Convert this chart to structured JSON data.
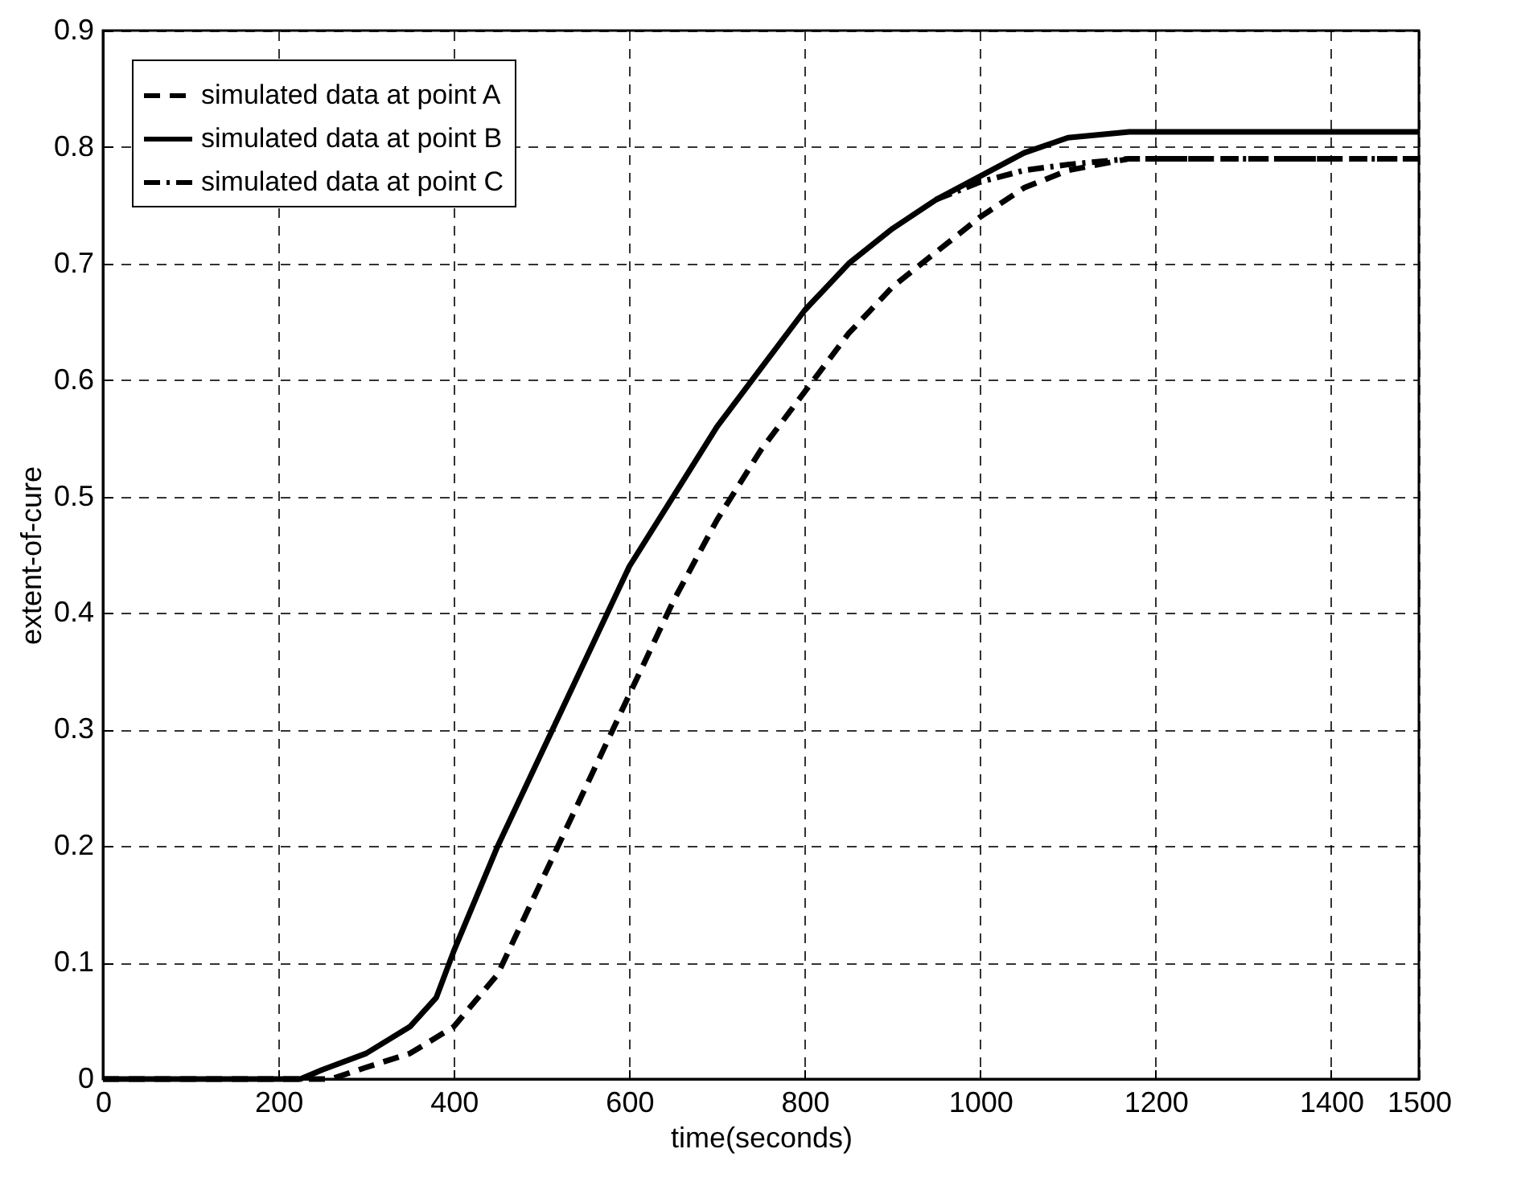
{
  "chart_data": {
    "type": "line",
    "xlabel": "time(seconds)",
    "ylabel": "extent-of-cure",
    "x": [
      0,
      225,
      250,
      300,
      350,
      380,
      400,
      450,
      500,
      550,
      600,
      650,
      700,
      750,
      800,
      850,
      900,
      950,
      1000,
      1050,
      1100,
      1170,
      1500
    ],
    "series": [
      {
        "name": "simulated data at point A",
        "color": "#000000",
        "line_style": "dashed",
        "x": [
          0,
          260,
          300,
          350,
          400,
          450,
          500,
          550,
          600,
          650,
          700,
          750,
          800,
          850,
          900,
          950,
          1000,
          1050,
          1100,
          1170,
          1500
        ],
        "values": [
          0,
          0,
          0.01,
          0.022,
          0.045,
          0.09,
          0.17,
          0.25,
          0.33,
          0.41,
          0.48,
          0.54,
          0.59,
          0.64,
          0.68,
          0.71,
          0.74,
          0.765,
          0.78,
          0.79,
          0.79
        ]
      },
      {
        "name": "simulated data at point B",
        "color": "#000000",
        "line_style": "solid",
        "values": [
          0,
          0,
          0.008,
          0.022,
          0.045,
          0.07,
          0.11,
          0.2,
          0.28,
          0.36,
          0.44,
          0.5,
          0.56,
          0.61,
          0.66,
          0.7,
          0.73,
          0.755,
          0.775,
          0.795,
          0.808,
          0.813,
          0.813
        ]
      },
      {
        "name": "simulated data at point C",
        "color": "#000000",
        "line_style": "dashdot",
        "values": [
          null,
          null,
          null,
          null,
          null,
          null,
          null,
          null,
          null,
          null,
          null,
          null,
          null,
          null,
          null,
          null,
          null,
          0.755,
          0.77,
          0.78,
          0.785,
          0.79,
          0.79
        ]
      }
    ],
    "xlim": [
      0,
      1500
    ],
    "xticks": [
      0,
      200,
      400,
      600,
      800,
      1000,
      1200,
      1400,
      1500
    ],
    "ylim": [
      0,
      0.9
    ],
    "yticks": [
      0,
      0.1,
      0.2,
      0.3,
      0.4,
      0.5,
      0.6,
      0.7,
      0.8,
      0.9
    ],
    "grid": true,
    "legend": "top left"
  }
}
